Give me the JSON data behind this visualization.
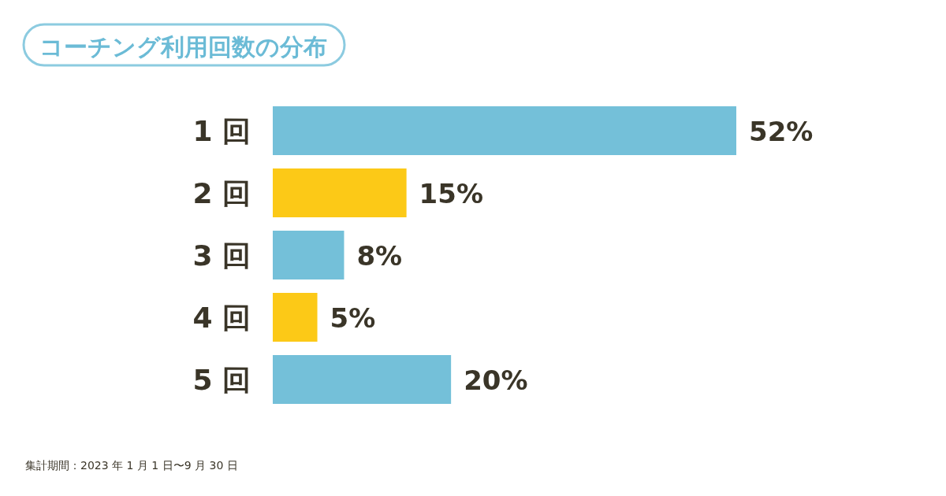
{
  "chart_data": {
    "type": "bar",
    "orientation": "horizontal",
    "title": "コーチング利用回数の分布",
    "categories": [
      "1 回",
      "2 回",
      "3 回",
      "4 回",
      "5 回"
    ],
    "values": [
      52,
      15,
      8,
      5,
      20
    ],
    "value_labels": [
      "52%",
      "15%",
      "8%",
      "5%",
      "20%"
    ],
    "colors": [
      "#74c0d9",
      "#fcc917",
      "#74c0d9",
      "#fcc917",
      "#74c0d9"
    ],
    "annotations": [
      "集計期間：2023 年 1 月 1 日〜9 月 30 日"
    ]
  }
}
